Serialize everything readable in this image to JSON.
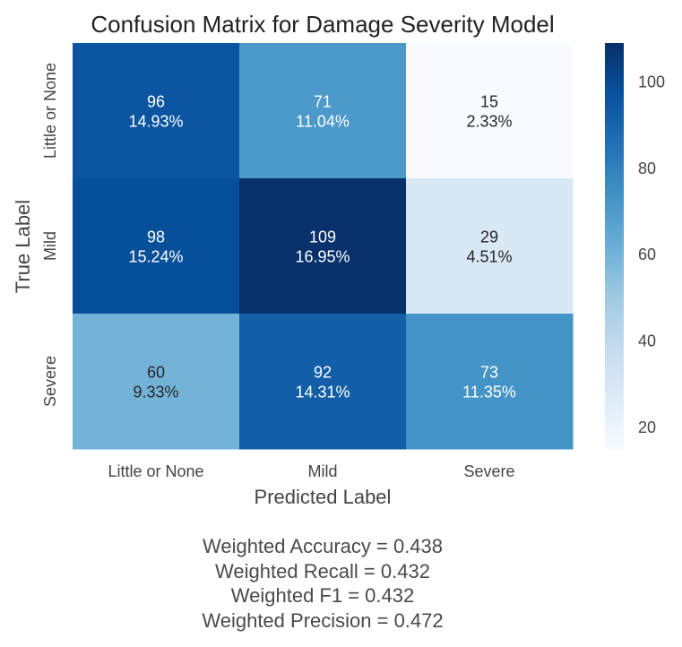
{
  "chart_data": {
    "type": "heatmap",
    "title": "Confusion Matrix for Damage Severity Model",
    "xlabel": "Predicted Label",
    "ylabel": "True Label",
    "x_categories": [
      "Little or None",
      "Mild",
      "Severe"
    ],
    "y_categories": [
      "Little or None",
      "Mild",
      "Severe"
    ],
    "values": [
      [
        96,
        71,
        15
      ],
      [
        98,
        109,
        29
      ],
      [
        60,
        92,
        73
      ]
    ],
    "percent_labels": [
      [
        "14.93%",
        "11.04%",
        "2.33%"
      ],
      [
        "15.24%",
        "16.95%",
        "4.51%"
      ],
      [
        "9.33%",
        "14.31%",
        "11.35%"
      ]
    ],
    "colormap": "Blues",
    "color_range": [
      15,
      109
    ],
    "colorbar_ticks": [
      20,
      40,
      60,
      80,
      100
    ],
    "grid": false
  },
  "metrics": [
    "Weighted Accuracy = 0.438",
    "Weighted Recall = 0.432",
    "Weighted F1 = 0.432",
    "Weighted Precision = 0.472"
  ]
}
